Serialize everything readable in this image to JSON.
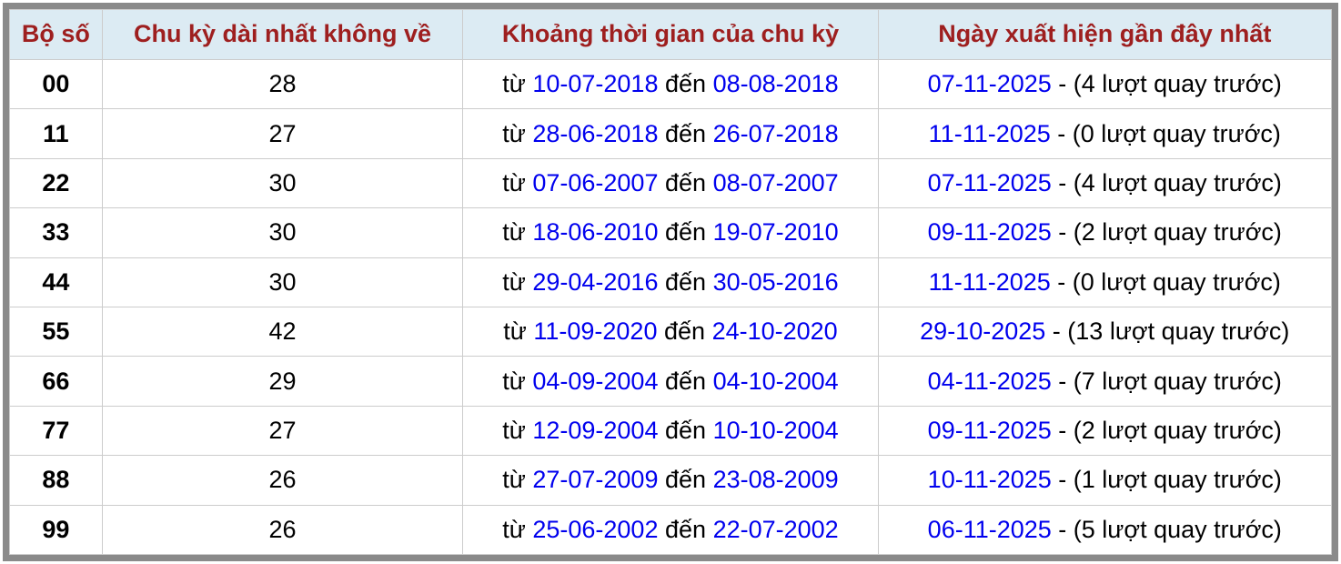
{
  "table": {
    "headers": [
      "Bộ số",
      "Chu kỳ dài nhất không về",
      "Khoảng thời gian của chu kỳ",
      "Ngày xuất hiện gần đây nhất"
    ],
    "labels": {
      "from": "từ",
      "to": "đến"
    },
    "rows": [
      {
        "pair": "00",
        "cycle": "28",
        "from_date": "10-07-2018",
        "to_date": "08-08-2018",
        "recent_date": "07-11-2025",
        "recent_note": "- (4 lượt quay trước)"
      },
      {
        "pair": "11",
        "cycle": "27",
        "from_date": "28-06-2018",
        "to_date": "26-07-2018",
        "recent_date": "11-11-2025",
        "recent_note": "- (0 lượt quay trước)"
      },
      {
        "pair": "22",
        "cycle": "30",
        "from_date": "07-06-2007",
        "to_date": "08-07-2007",
        "recent_date": "07-11-2025",
        "recent_note": "- (4 lượt quay trước)"
      },
      {
        "pair": "33",
        "cycle": "30",
        "from_date": "18-06-2010",
        "to_date": "19-07-2010",
        "recent_date": "09-11-2025",
        "recent_note": "- (2 lượt quay trước)"
      },
      {
        "pair": "44",
        "cycle": "30",
        "from_date": "29-04-2016",
        "to_date": "30-05-2016",
        "recent_date": "11-11-2025",
        "recent_note": "- (0 lượt quay trước)"
      },
      {
        "pair": "55",
        "cycle": "42",
        "from_date": "11-09-2020",
        "to_date": "24-10-2020",
        "recent_date": "29-10-2025",
        "recent_note": "- (13 lượt quay trước)"
      },
      {
        "pair": "66",
        "cycle": "29",
        "from_date": "04-09-2004",
        "to_date": "04-10-2004",
        "recent_date": "04-11-2025",
        "recent_note": "- (7 lượt quay trước)"
      },
      {
        "pair": "77",
        "cycle": "27",
        "from_date": "12-09-2004",
        "to_date": "10-10-2004",
        "recent_date": "09-11-2025",
        "recent_note": "- (2 lượt quay trước)"
      },
      {
        "pair": "88",
        "cycle": "26",
        "from_date": "27-07-2009",
        "to_date": "23-08-2009",
        "recent_date": "10-11-2025",
        "recent_note": "- (1 lượt quay trước)"
      },
      {
        "pair": "99",
        "cycle": "26",
        "from_date": "25-06-2002",
        "to_date": "22-07-2002",
        "recent_date": "06-11-2025",
        "recent_note": "- (5 lượt quay trước)"
      }
    ]
  },
  "colors": {
    "header_bg": "#dcebf3",
    "header_text": "#9e1f1f",
    "date_link": "#0000ee",
    "frame": "#8a8a8a",
    "cell_border": "#cccccc",
    "body_text": "#000000"
  }
}
